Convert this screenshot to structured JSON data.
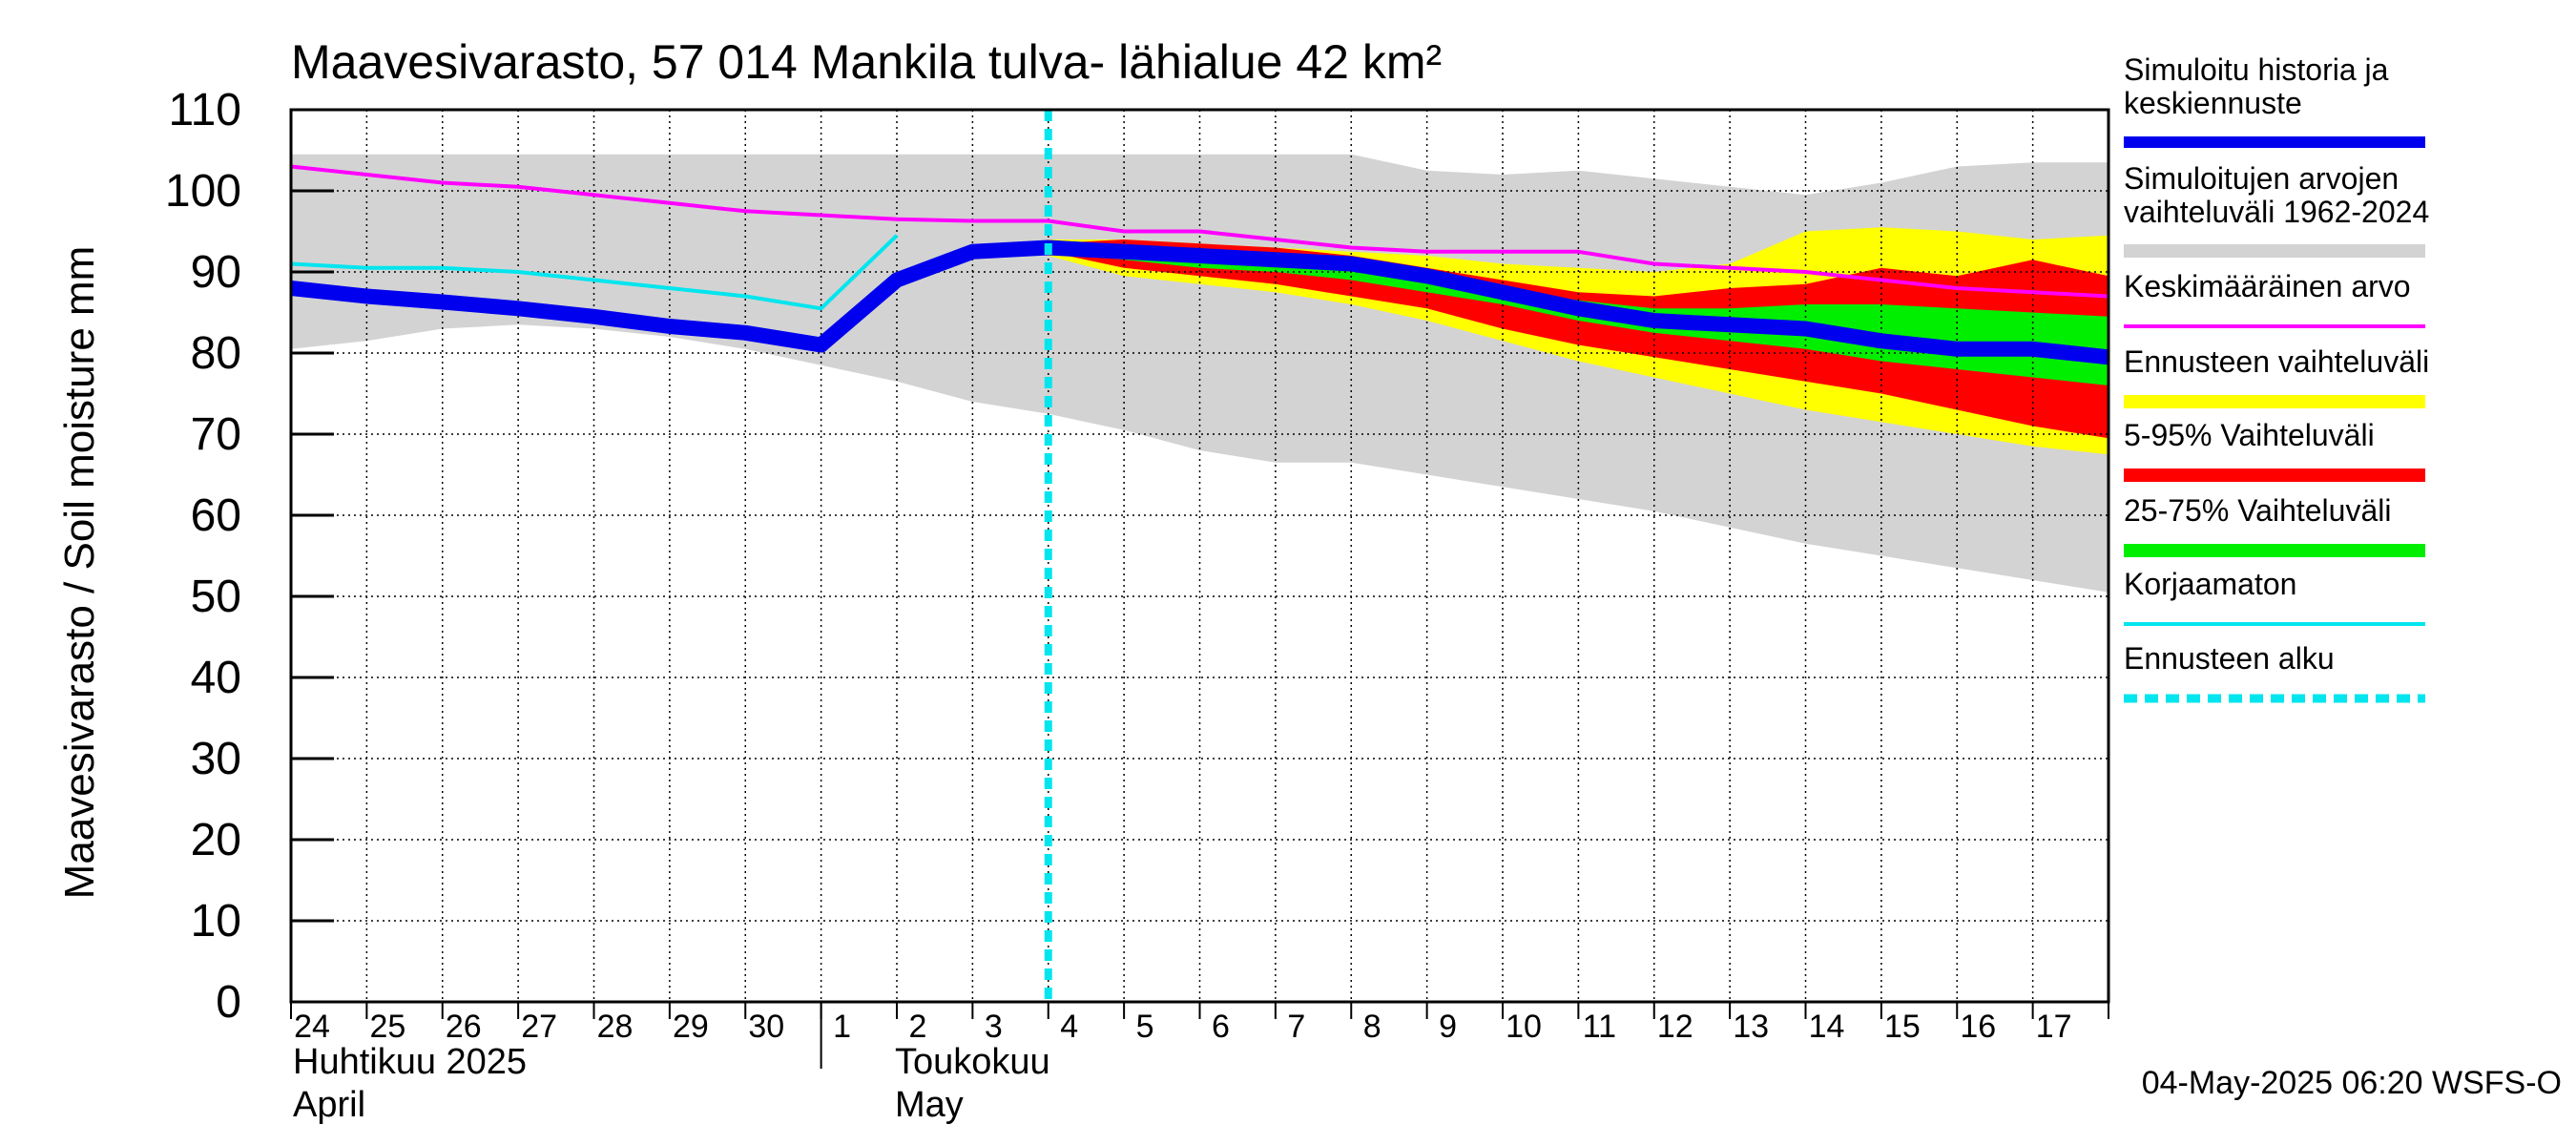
{
  "chart_data": {
    "type": "area",
    "title": "Maavesivarasto, 57 014 Mankila tulva- lähialue 42 km²",
    "ylabel": "Maavesivarasto / Soil moisture   mm",
    "ylim": [
      0,
      110
    ],
    "yticks": [
      0,
      10,
      20,
      30,
      40,
      50,
      60,
      70,
      80,
      90,
      100,
      110
    ],
    "xlim_days": [
      0,
      24
    ],
    "day_labels": [
      "24",
      "25",
      "26",
      "27",
      "28",
      "29",
      "30",
      "1",
      "2",
      "3",
      "4",
      "5",
      "6",
      "7",
      "8",
      "9",
      "10",
      "11",
      "12",
      "13",
      "14",
      "15",
      "16",
      "17"
    ],
    "month_labels": [
      {
        "line1": "Huhtikuu  2025",
        "line2": "April"
      },
      {
        "line1": "Toukokuu",
        "line2": "May"
      }
    ],
    "forecast_start_day": 10.0,
    "series": {
      "hist_range": {
        "name": "Simuloitujen arvojen vaihteluväli 1962-2024",
        "color": "#d3d3d3",
        "x": [
          0,
          1,
          2,
          3,
          4,
          5,
          6,
          7,
          8,
          9,
          10,
          11,
          12,
          13,
          14,
          15,
          16,
          17,
          18,
          19,
          20,
          21,
          22,
          23,
          24
        ],
        "upper": [
          104.5,
          104.5,
          104.5,
          104.5,
          104.5,
          104.5,
          104.5,
          104.5,
          104.5,
          104.5,
          104.5,
          104.5,
          104.5,
          104.5,
          104.5,
          102.5,
          102,
          102.5,
          101.5,
          100.5,
          99.5,
          101,
          103,
          103.5,
          103.5
        ],
        "lower": [
          80.5,
          81.5,
          83,
          83.5,
          83,
          82,
          80.5,
          78.5,
          76.5,
          74,
          72.5,
          70.5,
          68,
          66.5,
          66.5,
          65,
          63.5,
          62,
          60.5,
          58.5,
          56.5,
          55,
          53.5,
          52,
          50.5
        ]
      },
      "ens_range": {
        "name": "Ennusteen vaihteluväli",
        "color": "#ffff00",
        "x": [
          10,
          11,
          12,
          13,
          14,
          15,
          16,
          17,
          18,
          19,
          20,
          21,
          22,
          23,
          24
        ],
        "upper": [
          94,
          94,
          93.5,
          93,
          92.5,
          92,
          91,
          90.5,
          90,
          91,
          95,
          95.5,
          95,
          94,
          94.5
        ],
        "lower": [
          92,
          89.5,
          88.5,
          87.5,
          86,
          84,
          81.5,
          79,
          77,
          75,
          73,
          71.5,
          70,
          68.5,
          67.5
        ]
      },
      "p5_95": {
        "name": "5-95% Vaihteluväli",
        "color": "#ff0000",
        "x": [
          10,
          11,
          12,
          13,
          14,
          15,
          16,
          17,
          18,
          19,
          20,
          21,
          22,
          23,
          24
        ],
        "upper": [
          93.5,
          94,
          93.5,
          93,
          92,
          90.5,
          89,
          87.5,
          87,
          88,
          88.5,
          90.5,
          89.5,
          91.5,
          89.5
        ],
        "lower": [
          92.5,
          90.5,
          89.5,
          88.5,
          87,
          85.5,
          83,
          81,
          79.5,
          78,
          76.5,
          75,
          73,
          71,
          69.5
        ]
      },
      "p25_75": {
        "name": "25-75% Vaihteluväli",
        "color": "#00ee00",
        "x": [
          10,
          11,
          12,
          13,
          14,
          15,
          16,
          17,
          18,
          19,
          20,
          21,
          22,
          23,
          24
        ],
        "upper": [
          93,
          93,
          92.5,
          92,
          91.5,
          90,
          88,
          86.5,
          85.5,
          85.5,
          86,
          86,
          85.5,
          85,
          84.5
        ],
        "lower": [
          92.5,
          91.5,
          90.5,
          90,
          89,
          87.5,
          86,
          84,
          82.5,
          81.5,
          80.5,
          79,
          78,
          77,
          76
        ]
      },
      "mean": {
        "name": "Keskimääräinen arvo",
        "color": "#ff00ff",
        "x": [
          0,
          1,
          2,
          3,
          4,
          5,
          6,
          7,
          8,
          9,
          10,
          11,
          12,
          13,
          14,
          15,
          16,
          17,
          18,
          19,
          20,
          21,
          22,
          23,
          24
        ],
        "y": [
          103,
          102,
          101,
          100.5,
          99.5,
          98.5,
          97.5,
          97,
          96.5,
          96.3,
          96.3,
          95,
          95,
          94,
          93,
          92.5,
          92.5,
          92.5,
          91,
          90.5,
          90,
          89,
          88,
          87.5,
          87
        ]
      },
      "uncorrected": {
        "name": "Korjaamaton",
        "color": "#00e5ee",
        "x": [
          0,
          1,
          2,
          3,
          4,
          5,
          6,
          7,
          8
        ],
        "y": [
          91,
          90.5,
          90.5,
          90,
          89,
          88,
          87,
          85.5,
          94.5
        ]
      },
      "main": {
        "name": "Simuloitu historia ja keskiennuste",
        "color": "#0000ee",
        "x": [
          0,
          1,
          2,
          3,
          4,
          5,
          6,
          7,
          8,
          9,
          10,
          11,
          12,
          13,
          14,
          15,
          16,
          17,
          18,
          19,
          20,
          21,
          22,
          23,
          24
        ],
        "y": [
          88,
          87,
          86.3,
          85.5,
          84.5,
          83.3,
          82.5,
          81,
          89,
          92.5,
          93,
          92.5,
          92,
          91.5,
          91,
          89.5,
          87.5,
          85.5,
          84,
          83.5,
          83,
          81.5,
          80.5,
          80.5,
          79.5
        ]
      }
    },
    "legend": [
      {
        "key": "main",
        "lines": [
          "Simuloitu historia ja",
          "keskiennuste"
        ],
        "style": "thick",
        "color": "#0000ee"
      },
      {
        "key": "hist_range",
        "lines": [
          "Simuloitujen arvojen",
          "vaihteluväli 1962-2024"
        ],
        "style": "band",
        "color": "#d3d3d3"
      },
      {
        "key": "mean",
        "lines": [
          "Keskimääräinen arvo"
        ],
        "style": "thin",
        "color": "#ff00ff"
      },
      {
        "key": "ens_range",
        "lines": [
          "Ennusteen vaihteluväli"
        ],
        "style": "band",
        "color": "#ffff00"
      },
      {
        "key": "p5_95",
        "lines": [
          "5-95% Vaihteluväli"
        ],
        "style": "band",
        "color": "#ff0000"
      },
      {
        "key": "p25_75",
        "lines": [
          "25-75% Vaihteluväli"
        ],
        "style": "band",
        "color": "#00ee00"
      },
      {
        "key": "uncorrected",
        "lines": [
          "Korjaamaton"
        ],
        "style": "thin",
        "color": "#00e5ee"
      },
      {
        "key": "forecast_start",
        "lines": [
          "Ennusteen alku"
        ],
        "style": "dashed",
        "color": "#00e5ee"
      }
    ],
    "footer": "04-May-2025 06:20 WSFS-O"
  }
}
